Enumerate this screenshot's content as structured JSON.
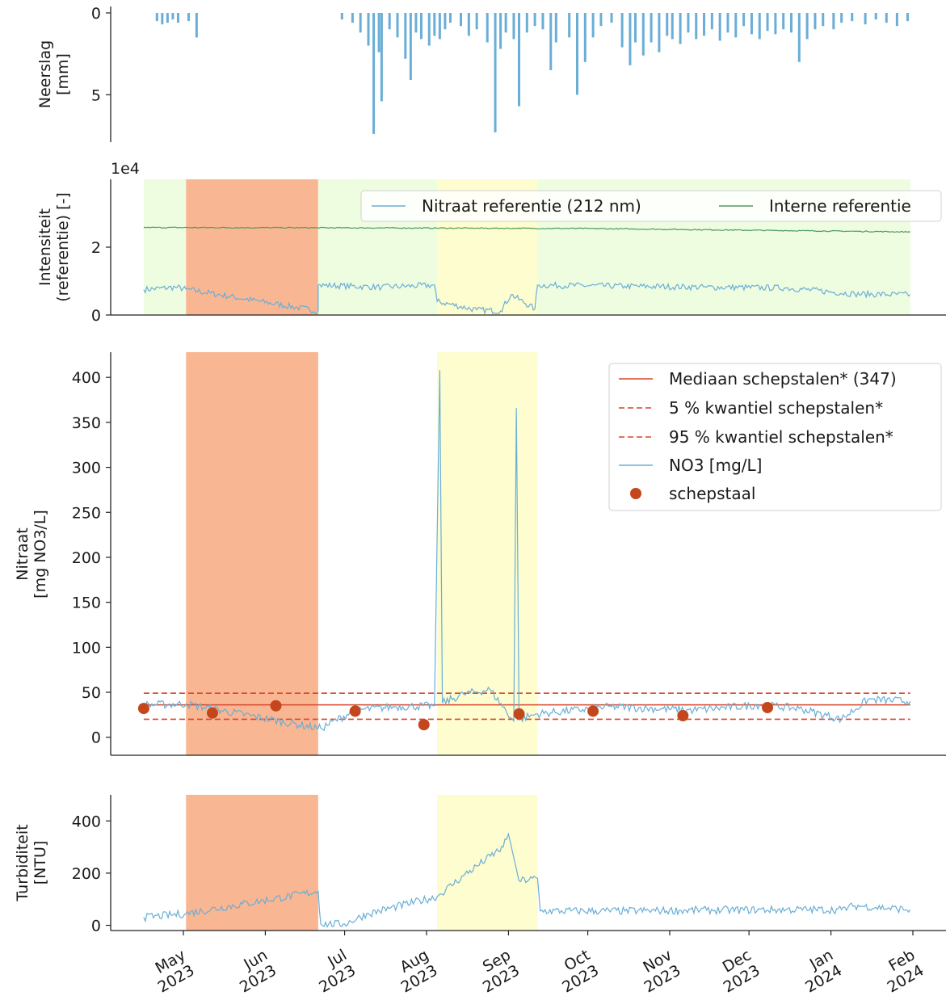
{
  "colors": {
    "series": "#6aaed6",
    "sample": "#c4461c",
    "median": "#d9452b",
    "ref_internal": "#4f9a5f",
    "green_band": "#eefce0",
    "orange_band": "#f9b693",
    "yellow_band": "#fdfdd0"
  },
  "x_axis": {
    "tick_labels": [
      {
        "month": "May",
        "year": "2023"
      },
      {
        "month": "Jun",
        "year": "2023"
      },
      {
        "month": "Jul",
        "year": "2023"
      },
      {
        "month": "Aug",
        "year": "2023"
      },
      {
        "month": "Sep",
        "year": "2023"
      },
      {
        "month": "Oct",
        "year": "2023"
      },
      {
        "month": "Nov",
        "year": "2023"
      },
      {
        "month": "Dec",
        "year": "2023"
      },
      {
        "month": "Jan",
        "year": "2024"
      },
      {
        "month": "Feb",
        "year": "2024"
      }
    ]
  },
  "chart_data": [
    {
      "type": "bar",
      "ylabel": [
        "Neerslag",
        "[mm]"
      ],
      "ylim": [
        7.9,
        0
      ],
      "yticks": [
        0,
        5
      ],
      "inverted": true,
      "series": [
        {
          "values_description_free": true,
          "events": [
            {
              "x": "2023-04-21",
              "y": 0.5
            },
            {
              "x": "2023-04-23",
              "y": 0.7
            },
            {
              "x": "2023-04-25",
              "y": 0.6
            },
            {
              "x": "2023-04-27",
              "y": 0.4
            },
            {
              "x": "2023-04-29",
              "y": 0.6
            },
            {
              "x": "2023-05-03",
              "y": 0.5
            },
            {
              "x": "2023-05-06",
              "y": 1.5
            },
            {
              "x": "2023-06-30",
              "y": 0.4
            },
            {
              "x": "2023-07-04",
              "y": 0.6
            },
            {
              "x": "2023-07-07",
              "y": 1.2
            },
            {
              "x": "2023-07-10",
              "y": 2.0
            },
            {
              "x": "2023-07-12",
              "y": 7.4
            },
            {
              "x": "2023-07-14",
              "y": 2.4
            },
            {
              "x": "2023-07-15",
              "y": 5.4
            },
            {
              "x": "2023-07-18",
              "y": 1.0
            },
            {
              "x": "2023-07-21",
              "y": 1.5
            },
            {
              "x": "2023-07-24",
              "y": 2.8
            },
            {
              "x": "2023-07-26",
              "y": 4.1
            },
            {
              "x": "2023-07-28",
              "y": 1.2
            },
            {
              "x": "2023-07-30",
              "y": 1.6
            },
            {
              "x": "2023-08-02",
              "y": 2.0
            },
            {
              "x": "2023-08-04",
              "y": 1.4
            },
            {
              "x": "2023-08-06",
              "y": 1.6
            },
            {
              "x": "2023-08-08",
              "y": 1.0
            },
            {
              "x": "2023-08-10",
              "y": 0.6
            },
            {
              "x": "2023-08-14",
              "y": 0.8
            },
            {
              "x": "2023-08-17",
              "y": 1.4
            },
            {
              "x": "2023-08-20",
              "y": 1.0
            },
            {
              "x": "2023-08-24",
              "y": 1.8
            },
            {
              "x": "2023-08-27",
              "y": 7.3
            },
            {
              "x": "2023-08-29",
              "y": 2.2
            },
            {
              "x": "2023-08-31",
              "y": 1.2
            },
            {
              "x": "2023-09-03",
              "y": 1.6
            },
            {
              "x": "2023-09-05",
              "y": 5.7
            },
            {
              "x": "2023-09-08",
              "y": 1.2
            },
            {
              "x": "2023-09-11",
              "y": 0.8
            },
            {
              "x": "2023-09-14",
              "y": 1.0
            },
            {
              "x": "2023-09-17",
              "y": 3.5
            },
            {
              "x": "2023-09-19",
              "y": 1.8
            },
            {
              "x": "2023-09-24",
              "y": 1.5
            },
            {
              "x": "2023-09-27",
              "y": 5.0
            },
            {
              "x": "2023-09-30",
              "y": 3.0
            },
            {
              "x": "2023-10-03",
              "y": 1.5
            },
            {
              "x": "2023-10-06",
              "y": 0.8
            },
            {
              "x": "2023-10-10",
              "y": 0.6
            },
            {
              "x": "2023-10-14",
              "y": 2.1
            },
            {
              "x": "2023-10-17",
              "y": 3.2
            },
            {
              "x": "2023-10-19",
              "y": 1.8
            },
            {
              "x": "2023-10-22",
              "y": 2.6
            },
            {
              "x": "2023-10-25",
              "y": 1.8
            },
            {
              "x": "2023-10-28",
              "y": 2.4
            },
            {
              "x": "2023-10-31",
              "y": 1.4
            },
            {
              "x": "2023-11-02",
              "y": 1.6
            },
            {
              "x": "2023-11-05",
              "y": 1.9
            },
            {
              "x": "2023-11-08",
              "y": 1.2
            },
            {
              "x": "2023-11-11",
              "y": 1.6
            },
            {
              "x": "2023-11-14",
              "y": 1.4
            },
            {
              "x": "2023-11-17",
              "y": 1.0
            },
            {
              "x": "2023-11-20",
              "y": 1.7
            },
            {
              "x": "2023-11-23",
              "y": 1.2
            },
            {
              "x": "2023-11-26",
              "y": 1.5
            },
            {
              "x": "2023-11-29",
              "y": 0.8
            },
            {
              "x": "2023-12-02",
              "y": 1.3
            },
            {
              "x": "2023-12-05",
              "y": 1.6
            },
            {
              "x": "2023-12-08",
              "y": 1.1
            },
            {
              "x": "2023-12-11",
              "y": 1.3
            },
            {
              "x": "2023-12-14",
              "y": 1.0
            },
            {
              "x": "2023-12-17",
              "y": 1.2
            },
            {
              "x": "2023-12-20",
              "y": 3.0
            },
            {
              "x": "2023-12-23",
              "y": 1.6
            },
            {
              "x": "2023-12-26",
              "y": 1.0
            },
            {
              "x": "2023-12-29",
              "y": 0.8
            },
            {
              "x": "2024-01-02",
              "y": 1.0
            },
            {
              "x": "2024-01-05",
              "y": 0.6
            },
            {
              "x": "2024-01-09",
              "y": 0.5
            },
            {
              "x": "2024-01-14",
              "y": 0.7
            },
            {
              "x": "2024-01-18",
              "y": 0.4
            },
            {
              "x": "2024-01-22",
              "y": 0.6
            },
            {
              "x": "2024-01-26",
              "y": 0.8
            },
            {
              "x": "2024-01-30",
              "y": 0.5
            }
          ]
        }
      ]
    },
    {
      "type": "line",
      "ylabel": [
        "Intensiteit",
        "(referentie) [-]"
      ],
      "offset_text": "1e4",
      "ylim": [
        0,
        4.0
      ],
      "yticks": [
        0,
        2
      ],
      "bands": [
        {
          "from": "2023-04-16",
          "to": "2023-05-02",
          "color": "green_band"
        },
        {
          "from": "2023-05-02",
          "to": "2023-06-21",
          "color": "orange_band"
        },
        {
          "from": "2023-06-21",
          "to": "2023-08-05",
          "color": "green_band"
        },
        {
          "from": "2023-08-05",
          "to": "2023-09-12",
          "color": "yellow_band"
        },
        {
          "from": "2023-09-12",
          "to": "2024-01-31",
          "color": "green_band"
        }
      ],
      "series": [
        {
          "name": "Nitraat referentie (212 nm)",
          "color": "series",
          "points": [
            [
              "2023-04-16",
              0.75
            ],
            [
              "2023-04-28",
              0.82
            ],
            [
              "2023-05-02",
              0.76
            ],
            [
              "2023-06-21",
              0.12
            ],
            [
              "2023-06-21",
              0.88
            ],
            [
              "2023-07-15",
              0.82
            ],
            [
              "2023-08-04",
              0.88
            ],
            [
              "2023-08-05",
              0.4
            ],
            [
              "2023-08-20",
              0.15
            ],
            [
              "2023-08-29",
              0.12
            ],
            [
              "2023-09-02",
              0.6
            ],
            [
              "2023-09-11",
              0.18
            ],
            [
              "2023-09-12",
              0.88
            ],
            [
              "2023-10-15",
              0.85
            ],
            [
              "2023-11-15",
              0.82
            ],
            [
              "2023-12-15",
              0.8
            ],
            [
              "2024-01-10",
              0.62
            ],
            [
              "2024-01-31",
              0.6
            ]
          ]
        },
        {
          "name": "Interne referentie",
          "color": "ref_internal",
          "points": [
            [
              "2023-04-16",
              2.58
            ],
            [
              "2023-07-01",
              2.57
            ],
            [
              "2023-10-01",
              2.55
            ],
            [
              "2023-12-01",
              2.5
            ],
            [
              "2024-01-31",
              2.45
            ]
          ]
        }
      ]
    },
    {
      "type": "line",
      "ylabel": [
        "Nitraat",
        "[mg NO3/L]"
      ],
      "ylim": [
        -20,
        428
      ],
      "yticks": [
        0,
        50,
        100,
        150,
        200,
        250,
        300,
        350,
        400
      ],
      "bands": [
        {
          "from": "2023-05-02",
          "to": "2023-06-21",
          "color": "orange_band"
        },
        {
          "from": "2023-08-05",
          "to": "2023-09-12",
          "color": "yellow_band"
        }
      ],
      "reference_lines": [
        {
          "name": "Mediaan schepstalen* (347)",
          "y": 36,
          "style": "solid"
        },
        {
          "name": "5 % kwantiel schepstalen*",
          "y": 20,
          "style": "dashed"
        },
        {
          "name": "95 % kwantiel schepstalen*",
          "y": 49,
          "style": "dashed"
        }
      ],
      "series": [
        {
          "name": "NO3 [mg/L]",
          "color": "series",
          "points": [
            [
              "2023-04-16",
              36
            ],
            [
              "2023-05-02",
              37
            ],
            [
              "2023-06-21",
              10
            ],
            [
              "2023-06-22",
              10
            ],
            [
              "2023-07-05",
              30
            ],
            [
              "2023-07-20",
              34
            ],
            [
              "2023-08-04",
              35
            ],
            [
              "2023-08-06",
              408
            ],
            [
              "2023-08-07",
              38
            ],
            [
              "2023-08-15",
              48
            ],
            [
              "2023-08-25",
              53
            ],
            [
              "2023-09-03",
              18
            ],
            [
              "2023-09-04",
              366
            ],
            [
              "2023-09-05",
              20
            ],
            [
              "2023-09-12",
              26
            ],
            [
              "2023-10-10",
              34
            ],
            [
              "2023-11-10",
              30
            ],
            [
              "2023-12-05",
              36
            ],
            [
              "2023-12-20",
              32
            ],
            [
              "2024-01-05",
              20
            ],
            [
              "2024-01-15",
              42
            ],
            [
              "2024-01-31",
              40
            ]
          ]
        },
        {
          "name": "schepstaal",
          "color": "sample",
          "points": [
            [
              "2023-04-16",
              32
            ],
            [
              "2023-05-12",
              27
            ],
            [
              "2023-06-05",
              35
            ],
            [
              "2023-07-05",
              29
            ],
            [
              "2023-07-31",
              14
            ],
            [
              "2023-09-05",
              26
            ],
            [
              "2023-10-03",
              29
            ],
            [
              "2023-11-06",
              24
            ],
            [
              "2023-12-08",
              33
            ]
          ]
        }
      ]
    },
    {
      "type": "line",
      "ylabel": [
        "Turbiditeit",
        "[NTU]"
      ],
      "ylim": [
        -20,
        500
      ],
      "yticks": [
        0,
        200,
        400
      ],
      "bands": [
        {
          "from": "2023-05-02",
          "to": "2023-06-21",
          "color": "orange_band"
        },
        {
          "from": "2023-08-05",
          "to": "2023-09-12",
          "color": "yellow_band"
        }
      ],
      "series": [
        {
          "name": "Turbiditeit",
          "color": "series",
          "points": [
            [
              "2023-04-16",
              30
            ],
            [
              "2023-05-02",
              45
            ],
            [
              "2023-06-21",
              130
            ],
            [
              "2023-06-22",
              5
            ],
            [
              "2023-07-01",
              5
            ],
            [
              "2023-07-10",
              45
            ],
            [
              "2023-08-05",
              110
            ],
            [
              "2023-08-15",
              190
            ],
            [
              "2023-08-30",
              300
            ],
            [
              "2023-09-01",
              350
            ],
            [
              "2023-09-05",
              170
            ],
            [
              "2023-09-12",
              180
            ],
            [
              "2023-09-13",
              55
            ],
            [
              "2023-10-15",
              55
            ],
            [
              "2023-11-15",
              58
            ],
            [
              "2023-12-15",
              60
            ],
            [
              "2024-01-05",
              60
            ],
            [
              "2024-01-10",
              75
            ],
            [
              "2024-01-31",
              60
            ]
          ]
        }
      ]
    }
  ]
}
